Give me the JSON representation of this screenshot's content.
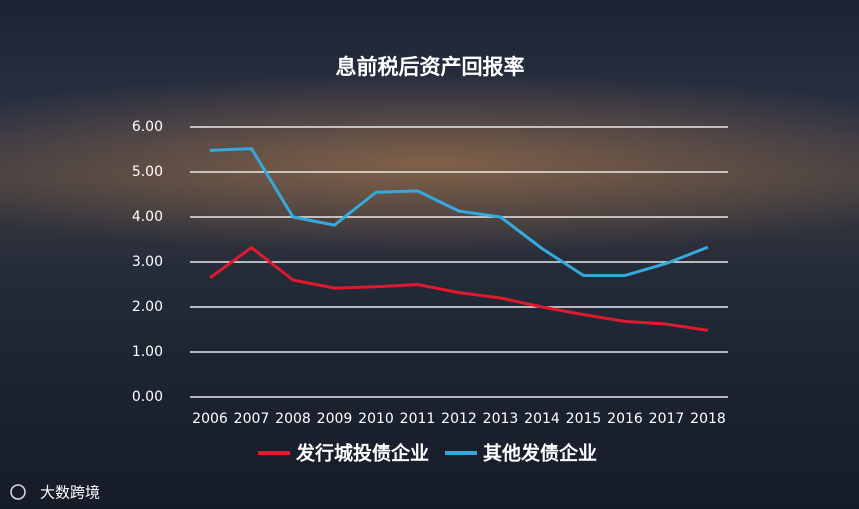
{
  "chart_data": {
    "type": "line",
    "title": "息前税后资产回报率",
    "categories": [
      "2006",
      "2007",
      "2008",
      "2009",
      "2010",
      "2011",
      "2012",
      "2013",
      "2014",
      "2015",
      "2016",
      "2017",
      "2018"
    ],
    "series": [
      {
        "name": "发行城投债企业",
        "color": "#e0192e",
        "values": [
          2.65,
          3.32,
          2.6,
          2.42,
          2.45,
          2.5,
          2.32,
          2.2,
          2.0,
          1.83,
          1.68,
          1.62,
          1.48
        ]
      },
      {
        "name": "其他发债企业",
        "color": "#35a9dc",
        "values": [
          5.48,
          5.52,
          4.0,
          3.82,
          4.55,
          4.58,
          4.13,
          4.0,
          3.3,
          2.7,
          2.7,
          2.97,
          3.33
        ]
      }
    ],
    "ylim": [
      0,
      6
    ],
    "yticks": [
      {
        "value": 0,
        "label": "0.00"
      },
      {
        "value": 1,
        "label": "1.00"
      },
      {
        "value": 2,
        "label": "2.00"
      },
      {
        "value": 3,
        "label": "3.00"
      },
      {
        "value": 4,
        "label": "4.00"
      },
      {
        "value": 5,
        "label": "5.00"
      },
      {
        "value": 6,
        "label": "6.00"
      }
    ],
    "grid": true,
    "watermark": "大数跨境"
  }
}
